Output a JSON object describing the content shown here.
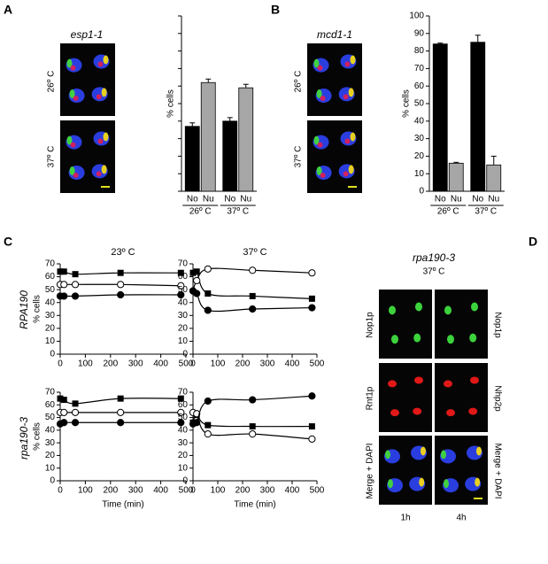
{
  "figure": {
    "panel_labels": [
      "A",
      "B",
      "C",
      "D"
    ],
    "A": {
      "strain": "esp1-1",
      "rows": [
        "26º C",
        "37º C"
      ]
    },
    "B": {
      "strain": "mcd1-1",
      "rows": [
        "26º C",
        "37º C"
      ]
    },
    "C": {
      "rows": [
        "RPA190",
        "rpa190-3"
      ]
    },
    "D": {
      "strain": "rpa190-3",
      "temperature": "37º C",
      "columns": [
        "1h",
        "4h"
      ],
      "left_labels": [
        "Nop1p",
        "Rnt1p",
        "Merge + DAPI"
      ],
      "right_labels": [
        "Nop1p",
        "Nhp2p",
        "Merge + DAPI"
      ]
    }
  },
  "chart_data": [
    {
      "type": "bar",
      "ylabel": "% cells",
      "categories": [
        "26º C",
        "37º C"
      ],
      "ylim": [
        0,
        100
      ],
      "yticks": [
        0,
        10,
        20,
        30,
        40,
        50,
        60,
        70,
        80,
        90,
        100
      ],
      "ytick_labels": false,
      "series": [
        {
          "name": "No",
          "color": "#000000",
          "values": [
            37,
            40
          ],
          "errors": [
            2,
            2
          ]
        },
        {
          "name": "Nu",
          "color": "#a6a6a6",
          "values": [
            62,
            59
          ],
          "errors": [
            2,
            2
          ]
        }
      ]
    },
    {
      "type": "bar",
      "ylabel": "% cells",
      "categories": [
        "26º C",
        "37º C"
      ],
      "ylim": [
        0,
        100
      ],
      "yticks": [
        0,
        10,
        20,
        30,
        40,
        50,
        60,
        70,
        80,
        90,
        100
      ],
      "ytick_labels": true,
      "series": [
        {
          "name": "No",
          "color": "#000000",
          "values": [
            84,
            85
          ],
          "errors": [
            0.5,
            4
          ]
        },
        {
          "name": "Nu",
          "color": "#a6a6a6",
          "values": [
            16,
            15
          ],
          "errors": [
            0.5,
            5
          ]
        }
      ]
    },
    {
      "type": "line",
      "title": "23º C",
      "ylabel": "% cells",
      "x": [
        0,
        15,
        60,
        240,
        480
      ],
      "xlim": [
        0,
        500
      ],
      "xticks": [
        0,
        100,
        200,
        300,
        400,
        500
      ],
      "ylim": [
        0,
        70
      ],
      "yticks": [
        0,
        10,
        20,
        30,
        40,
        50,
        60,
        70
      ],
      "series": [
        {
          "marker": "square",
          "color": "#000000",
          "values": [
            64,
            64,
            62,
            63,
            63
          ]
        },
        {
          "marker": "open-circle",
          "color": "#000000",
          "values": [
            54,
            54,
            54,
            54,
            53
          ]
        },
        {
          "marker": "filled-circle",
          "color": "#000000",
          "values": [
            45,
            45,
            45,
            46,
            46
          ]
        }
      ]
    },
    {
      "type": "line",
      "title": "37º C",
      "x": [
        0,
        15,
        60,
        240,
        480
      ],
      "xlim": [
        0,
        500
      ],
      "xticks": [
        0,
        100,
        200,
        300,
        400,
        500
      ],
      "ylim": [
        0,
        70
      ],
      "yticks": [
        0,
        10,
        20,
        30,
        40,
        50,
        60,
        70
      ],
      "series": [
        {
          "marker": "square",
          "color": "#000000",
          "values": [
            63,
            64,
            47,
            45,
            43
          ]
        },
        {
          "marker": "open-circle",
          "color": "#000000",
          "values": [
            49,
            57,
            66,
            65,
            63
          ]
        },
        {
          "marker": "filled-circle",
          "color": "#000000",
          "values": [
            49,
            47,
            34,
            35,
            36
          ]
        }
      ]
    },
    {
      "type": "line",
      "ylabel": "% cells",
      "xlabel": "Time (min)",
      "x": [
        0,
        15,
        60,
        240,
        480
      ],
      "xlim": [
        0,
        500
      ],
      "xticks": [
        0,
        100,
        200,
        300,
        400,
        500
      ],
      "ylim": [
        0,
        70
      ],
      "yticks": [
        0,
        10,
        20,
        30,
        40,
        50,
        60,
        70
      ],
      "series": [
        {
          "marker": "square",
          "color": "#000000",
          "values": [
            65,
            64,
            61,
            65,
            65
          ]
        },
        {
          "marker": "open-circle",
          "color": "#000000",
          "values": [
            54,
            54,
            54,
            54,
            54
          ]
        },
        {
          "marker": "filled-circle",
          "color": "#000000",
          "values": [
            45,
            46,
            46,
            46,
            46
          ]
        }
      ]
    },
    {
      "type": "line",
      "xlabel": "Time (min)",
      "x": [
        0,
        15,
        60,
        240,
        480
      ],
      "xlim": [
        0,
        500
      ],
      "xticks": [
        0,
        100,
        200,
        300,
        400,
        500
      ],
      "ylim": [
        0,
        70
      ],
      "yticks": [
        0,
        10,
        20,
        30,
        40,
        50,
        60,
        70
      ],
      "series": [
        {
          "marker": "square",
          "color": "#000000",
          "values": [
            46,
            52,
            44,
            43,
            43
          ]
        },
        {
          "marker": "open-circle",
          "color": "#000000",
          "values": [
            54,
            53,
            37,
            37,
            33
          ]
        },
        {
          "marker": "filled-circle",
          "color": "#000000",
          "values": [
            45,
            46,
            63,
            64,
            67
          ]
        }
      ]
    }
  ]
}
